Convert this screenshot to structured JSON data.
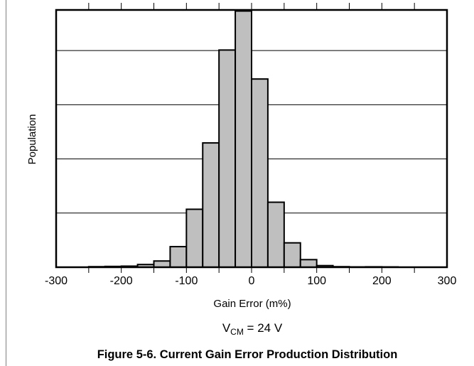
{
  "chart_data": {
    "type": "bar",
    "title": "",
    "xlabel": "Gain Error (m%)",
    "ylabel": "Population",
    "xlim": [
      -300,
      300
    ],
    "ylim": [
      0,
      95
    ],
    "xticks": [
      -300,
      -200,
      -100,
      0,
      100,
      200,
      300
    ],
    "ygrid_values": [
      20,
      40,
      60,
      80
    ],
    "grid": true,
    "bin_width": 25,
    "bins": [
      {
        "from": -250,
        "to": -225,
        "value": 0.2
      },
      {
        "from": -225,
        "to": -200,
        "value": 0.3
      },
      {
        "from": -200,
        "to": -175,
        "value": 0.4
      },
      {
        "from": -175,
        "to": -150,
        "value": 1.0
      },
      {
        "from": -150,
        "to": -125,
        "value": 2.3
      },
      {
        "from": -125,
        "to": -100,
        "value": 7.6
      },
      {
        "from": -100,
        "to": -75,
        "value": 21.4
      },
      {
        "from": -75,
        "to": -50,
        "value": 45.9
      },
      {
        "from": -50,
        "to": -25,
        "value": 80.2
      },
      {
        "from": -25,
        "to": 0,
        "value": 94.6
      },
      {
        "from": 0,
        "to": 25,
        "value": 69.5
      },
      {
        "from": 25,
        "to": 50,
        "value": 24.0
      },
      {
        "from": 50,
        "to": 75,
        "value": 9.0
      },
      {
        "from": 75,
        "to": 100,
        "value": 2.8
      },
      {
        "from": 100,
        "to": 125,
        "value": 0.6
      },
      {
        "from": 125,
        "to": 150,
        "value": 0.2
      },
      {
        "from": 150,
        "to": 175,
        "value": 0.1
      },
      {
        "from": 175,
        "to": 200,
        "value": 0.15
      },
      {
        "from": 200,
        "to": 225,
        "value": 0.1
      }
    ],
    "colors": {
      "bar_fill": "#bfbfbf",
      "bar_stroke": "#000000",
      "grid": "#000000"
    }
  },
  "condition": {
    "main": "V",
    "subscript": "CM",
    "rest": " = 24 V"
  },
  "caption": "Figure 5-6. Current Gain Error Production Distribution"
}
